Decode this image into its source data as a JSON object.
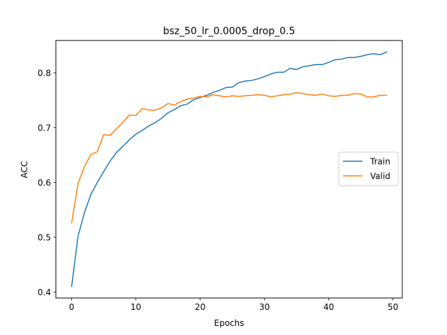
{
  "chart_data": {
    "type": "line",
    "title": "bsz_50_lr_0.0005_drop_0.5",
    "xlabel": "Epochs",
    "ylabel": "ACC",
    "xlim": [
      -2.45,
      51.45
    ],
    "ylim": [
      0.389,
      0.859
    ],
    "xticks": [
      0,
      10,
      20,
      30,
      40,
      50
    ],
    "yticks": [
      0.4,
      0.5,
      0.6,
      0.7,
      0.8
    ],
    "ytick_labels": [
      "0.4",
      "0.5",
      "0.6",
      "0.7",
      "0.8"
    ],
    "grid": false,
    "legend_position": "center-right",
    "x": [
      0,
      1,
      2,
      3,
      4,
      5,
      6,
      7,
      8,
      9,
      10,
      11,
      12,
      13,
      14,
      15,
      16,
      17,
      18,
      19,
      20,
      21,
      22,
      23,
      24,
      25,
      26,
      27,
      28,
      29,
      30,
      31,
      32,
      33,
      34,
      35,
      36,
      37,
      38,
      39,
      40,
      41,
      42,
      43,
      44,
      45,
      46,
      47,
      48,
      49
    ],
    "series": [
      {
        "name": "Train",
        "color": "#1f77b4",
        "values": [
          0.41,
          0.502,
          0.545,
          0.578,
          0.6,
          0.62,
          0.639,
          0.655,
          0.666,
          0.678,
          0.688,
          0.695,
          0.703,
          0.709,
          0.717,
          0.727,
          0.733,
          0.74,
          0.743,
          0.751,
          0.755,
          0.759,
          0.764,
          0.768,
          0.773,
          0.774,
          0.782,
          0.785,
          0.786,
          0.789,
          0.793,
          0.798,
          0.801,
          0.801,
          0.808,
          0.806,
          0.811,
          0.813,
          0.815,
          0.815,
          0.819,
          0.824,
          0.825,
          0.828,
          0.828,
          0.83,
          0.833,
          0.835,
          0.833,
          0.838
        ]
      },
      {
        "name": "Valid",
        "color": "#ff7f0e",
        "values": [
          0.526,
          0.598,
          0.629,
          0.651,
          0.656,
          0.687,
          0.686,
          0.698,
          0.71,
          0.723,
          0.722,
          0.735,
          0.732,
          0.732,
          0.736,
          0.744,
          0.741,
          0.748,
          0.752,
          0.754,
          0.757,
          0.756,
          0.76,
          0.758,
          0.756,
          0.758,
          0.757,
          0.758,
          0.759,
          0.76,
          0.759,
          0.756,
          0.758,
          0.76,
          0.761,
          0.764,
          0.762,
          0.76,
          0.759,
          0.761,
          0.758,
          0.757,
          0.759,
          0.759,
          0.762,
          0.761,
          0.756,
          0.756,
          0.759,
          0.759
        ]
      }
    ]
  }
}
